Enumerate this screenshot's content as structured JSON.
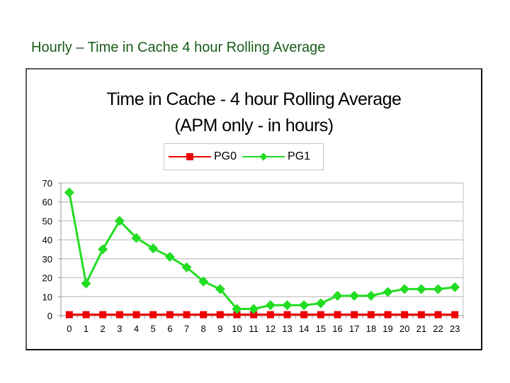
{
  "slide": {
    "title": "Hourly – Time in Cache 4 hour Rolling Average"
  },
  "chart_data": {
    "type": "line",
    "title": "Time in Cache - 4 hour Rolling Average",
    "subtitle": "(APM only - in hours)",
    "xlabel": "",
    "ylabel": "",
    "x": [
      0,
      1,
      2,
      3,
      4,
      5,
      6,
      7,
      8,
      9,
      10,
      11,
      12,
      13,
      14,
      15,
      16,
      17,
      18,
      19,
      20,
      21,
      22,
      23
    ],
    "categories": [
      "0",
      "1",
      "2",
      "3",
      "4",
      "5",
      "6",
      "7",
      "8",
      "9",
      "10",
      "11",
      "12",
      "13",
      "14",
      "15",
      "16",
      "17",
      "18",
      "19",
      "20",
      "21",
      "22",
      "23"
    ],
    "ylim": [
      0,
      70
    ],
    "yticks": [
      0,
      10,
      20,
      30,
      40,
      50,
      60,
      70
    ],
    "grid": true,
    "legend_position": "top",
    "series": [
      {
        "name": "PG0",
        "color": "#ee0000",
        "marker": "square",
        "values": [
          0.5,
          0.5,
          0.5,
          0.5,
          0.5,
          0.5,
          0.5,
          0.5,
          0.5,
          0.5,
          0.5,
          0.5,
          0.5,
          0.5,
          0.5,
          0.5,
          0.5,
          0.5,
          0.5,
          0.5,
          0.5,
          0.5,
          0.5,
          0.5
        ]
      },
      {
        "name": "PG1",
        "color": "#22dd22",
        "marker": "diamond",
        "values": [
          65,
          17,
          35,
          50,
          41,
          35.5,
          31,
          25.5,
          18,
          14,
          3.5,
          3.5,
          5.5,
          5.5,
          5.5,
          6.5,
          10.5,
          10.5,
          10.5,
          12.5,
          14,
          14,
          14,
          15
        ]
      }
    ]
  }
}
